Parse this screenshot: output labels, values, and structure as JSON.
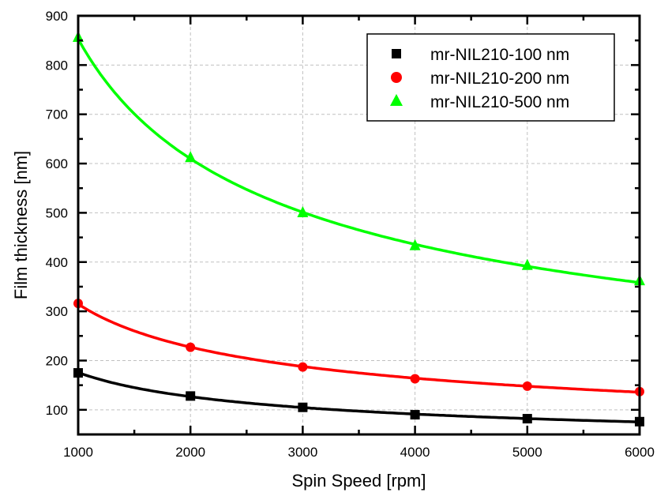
{
  "chart_data": {
    "type": "line",
    "title": "",
    "xlabel": "Spin Speed [rpm]",
    "ylabel": "Film thickness [nm]",
    "xlim": [
      1000,
      6000
    ],
    "ylim": [
      50,
      900
    ],
    "xticks": [
      1000,
      2000,
      3000,
      4000,
      5000,
      6000
    ],
    "xtick_labels": [
      "1000",
      "2000",
      "3000",
      "4000",
      "5000",
      "6000"
    ],
    "yticks": [
      100,
      200,
      300,
      400,
      500,
      600,
      700,
      800,
      900
    ],
    "ytick_labels": [
      "100",
      "200",
      "300",
      "400",
      "500",
      "600",
      "700",
      "800",
      "900"
    ],
    "grid": true,
    "legend_position": "top-right",
    "x": [
      1000,
      2000,
      3000,
      4000,
      5000,
      6000
    ],
    "series": [
      {
        "name": "mr-NIL210-100 nm",
        "marker": "square",
        "color": "#000000",
        "values": [
          175,
          128,
          105,
          90,
          82,
          76
        ]
      },
      {
        "name": "mr-NIL210-200 nm",
        "marker": "circle",
        "color": "#ff0000",
        "values": [
          316,
          227,
          187,
          163,
          148,
          137
        ]
      },
      {
        "name": "mr-NIL210-500 nm",
        "marker": "triangle",
        "color": "#00ff00",
        "values": [
          855,
          611,
          499,
          432,
          392,
          361
        ]
      }
    ]
  }
}
